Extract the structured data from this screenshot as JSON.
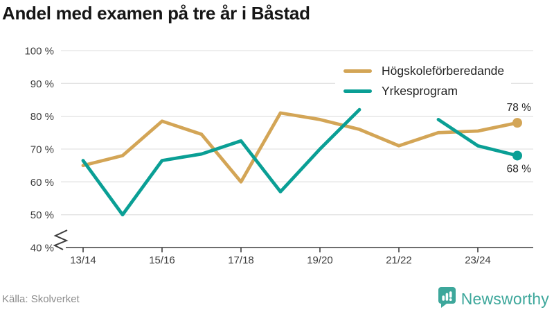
{
  "title": "Andel med examen på tre år i Båstad",
  "source": "Källa: Skolverket",
  "brand": {
    "name": "Newsworthy",
    "color": "#3da79b",
    "icon": "newsworthy-chart-bubble-icon"
  },
  "colors": {
    "gold": "#d3a556",
    "teal": "#0a9f95",
    "grid": "#e3e3e3",
    "axis": "#3d3d3d",
    "text": "#1f1f1f",
    "muted": "#8b8b8b"
  },
  "chart_data": {
    "type": "line",
    "x": [
      "13/14",
      "14/15",
      "15/16",
      "16/17",
      "17/18",
      "18/19",
      "19/20",
      "20/21",
      "21/22",
      "22/23",
      "23/24",
      "24/25"
    ],
    "x_tick_labels": [
      "13/14",
      "15/16",
      "17/18",
      "19/20",
      "21/22",
      "23/24"
    ],
    "series": [
      {
        "name": "Högskoleförberedande",
        "color": "#d3a556",
        "values": [
          65,
          68,
          78.5,
          74.5,
          60,
          81,
          79,
          76,
          71,
          75,
          75.5,
          78
        ],
        "end_label": "78 %"
      },
      {
        "name": "Yrkesprogram",
        "color": "#0a9f95",
        "values": [
          66.5,
          50,
          66.5,
          68.5,
          72.5,
          57,
          70,
          82,
          null,
          79,
          71,
          68
        ],
        "end_label": "68 %"
      }
    ],
    "ylim": [
      40,
      100
    ],
    "y_ticks": [
      100,
      90,
      80,
      70,
      60,
      50,
      40
    ],
    "y_tick_suffix": " %",
    "axis_break": true,
    "grid": true,
    "legend_position": "top-right",
    "title": "Andel med examen på tre år i Båstad"
  }
}
